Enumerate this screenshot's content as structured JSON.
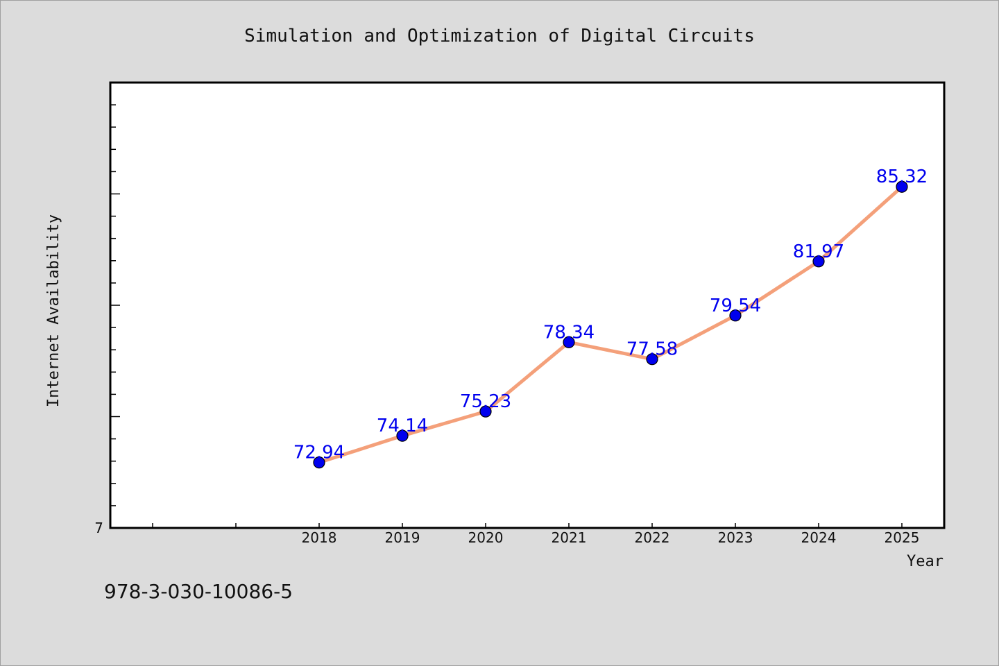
{
  "chart_data": {
    "type": "line",
    "title": "Simulation and Optimization of Digital Circuits",
    "xlabel": "Year",
    "ylabel": "Internet Availability",
    "categories": [
      "2018",
      "2019",
      "2020",
      "2021",
      "2022",
      "2023",
      "2024",
      "2025"
    ],
    "series": [
      {
        "values": [
          72.94,
          74.14,
          75.23,
          78.34,
          77.58,
          79.54,
          81.97,
          85.32
        ]
      }
    ],
    "data_labels": [
      "72.94",
      "74.14",
      "75.23",
      "78.34",
      "77.58",
      "79.54",
      "81.97",
      "85.32"
    ],
    "y_origin_label": "7",
    "ylim": [
      70,
      90
    ],
    "grid": false,
    "line_color": "#f4a07a",
    "marker_color": "#0000ee",
    "label_color": "#0000ee"
  },
  "footer": {
    "isbn": "978-3-030-10086-5"
  }
}
